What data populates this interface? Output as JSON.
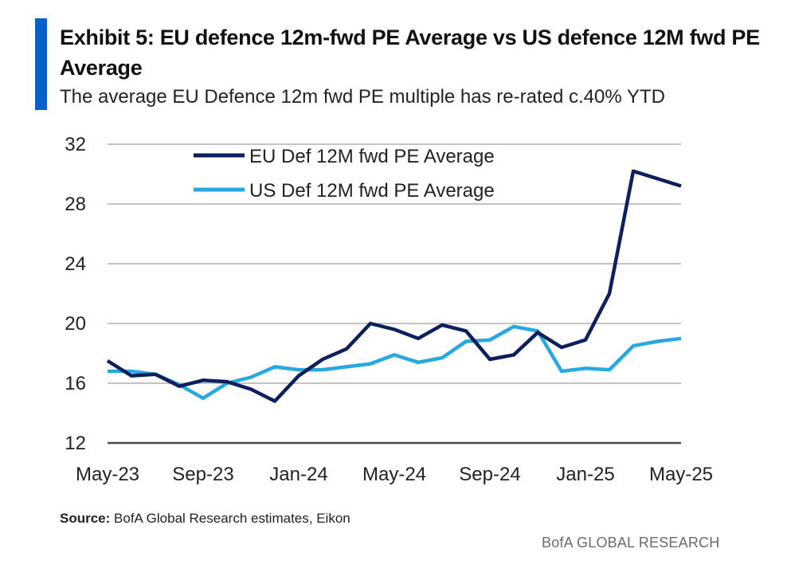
{
  "exhibit": {
    "title": "Exhibit 5: EU defence 12m-fwd PE Average vs US defence 12M fwd PE Average",
    "subtitle": "The average EU Defence 12m fwd PE multiple has re-rated c.40% YTD"
  },
  "footer": {
    "source_label": "Source:",
    "source_text": " BofA Global Research estimates, Eikon",
    "brand": "BofA GLOBAL RESEARCH"
  },
  "colors": {
    "accent": "#0b5fc6",
    "eu_series": "#0d1f5c",
    "us_series": "#26a8e0",
    "grid": "#c4c4c4",
    "axis": "#4a4a4a"
  },
  "chart_data": {
    "type": "line",
    "x": [
      "May-23",
      "Jun-23",
      "Jul-23",
      "Aug-23",
      "Sep-23",
      "Oct-23",
      "Nov-23",
      "Dec-23",
      "Jan-24",
      "Feb-24",
      "Mar-24",
      "Apr-24",
      "May-24",
      "Jun-24",
      "Jul-24",
      "Aug-24",
      "Sep-24",
      "Oct-24",
      "Nov-24",
      "Dec-24",
      "Jan-25",
      "Feb-25",
      "Mar-25",
      "Apr-25",
      "May-25"
    ],
    "x_tick_labels": [
      "May-23",
      "Sep-23",
      "Jan-24",
      "May-24",
      "Sep-24",
      "Jan-25",
      "May-25"
    ],
    "series": [
      {
        "name": "EU Def 12M fwd PE Average",
        "values": [
          17.5,
          16.5,
          16.6,
          15.8,
          16.2,
          16.1,
          15.6,
          14.8,
          16.5,
          17.6,
          18.3,
          20.0,
          19.6,
          19.0,
          19.9,
          19.5,
          17.6,
          17.9,
          19.4,
          18.4,
          18.9,
          22.0,
          30.2,
          29.7,
          29.2
        ]
      },
      {
        "name": "US Def 12M fwd PE Average",
        "values": [
          16.8,
          16.8,
          16.6,
          15.9,
          15.0,
          16.0,
          16.4,
          17.1,
          16.9,
          16.9,
          17.1,
          17.3,
          17.9,
          17.4,
          17.7,
          18.8,
          18.9,
          19.8,
          19.5,
          16.8,
          17.0,
          16.9,
          18.5,
          18.8,
          19.0
        ]
      }
    ],
    "y_ticks": [
      12,
      16,
      20,
      24,
      28,
      32
    ],
    "ylim": [
      12,
      32
    ],
    "grid": true,
    "legend_position": "top-left",
    "xlabel": "",
    "ylabel": ""
  }
}
